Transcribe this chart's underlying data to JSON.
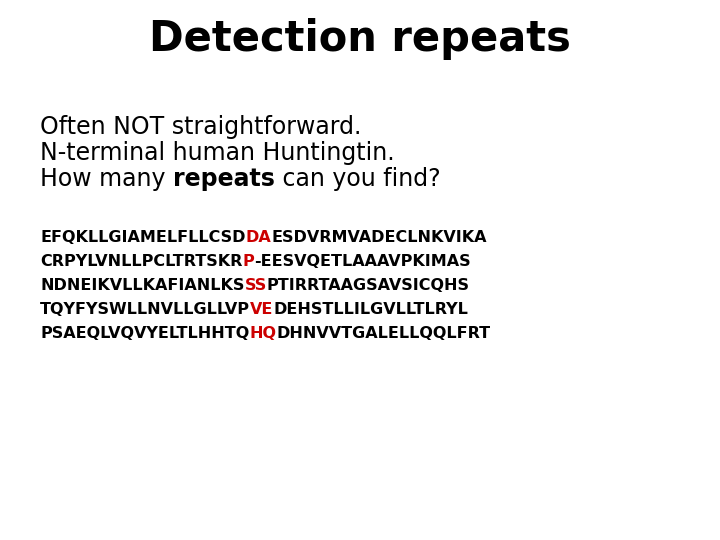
{
  "title": "Detection repeats",
  "background_color": "#ffffff",
  "title_fontsize": 30,
  "title_fontweight": "bold",
  "subtitle_fontsize": 17,
  "subtitle_fontfamily": "DejaVu Sans",
  "subtitle_lines": [
    [
      {
        "text": "Often NOT straightforward.",
        "weight": "normal",
        "color": "#000000"
      }
    ],
    [
      {
        "text": "N-terminal human Huntingtin.",
        "weight": "normal",
        "color": "#000000"
      }
    ],
    [
      {
        "text": "How many ",
        "weight": "normal",
        "color": "#000000"
      },
      {
        "text": "repeats",
        "weight": "bold",
        "color": "#000000"
      },
      {
        "text": " can you find?",
        "weight": "normal",
        "color": "#000000"
      }
    ]
  ],
  "sequence_fontsize": 11.5,
  "sequence_fontfamily": "Courier New",
  "sequence_fontweight": "bold",
  "sequence_lines": [
    [
      {
        "text": "EFQKLLGIAMELFLLCSD",
        "color": "#000000"
      },
      {
        "text": "DA",
        "color": "#cc0000"
      },
      {
        "text": "ESDVRMVADECLNKVIKA",
        "color": "#000000"
      }
    ],
    [
      {
        "text": "CRPYLVNLLPCLTRTSKR",
        "color": "#000000"
      },
      {
        "text": "P",
        "color": "#cc0000"
      },
      {
        "text": "-EESVQETLAAAVPKIMAS",
        "color": "#000000"
      }
    ],
    [
      {
        "text": "NDNEIKVLLKAFIANLKS",
        "color": "#000000"
      },
      {
        "text": "SS",
        "color": "#cc0000"
      },
      {
        "text": "PTIRRTAAGSAVSICQHS",
        "color": "#000000"
      }
    ],
    [
      {
        "text": "TQYFYSWLLNVLLGLLVP",
        "color": "#000000"
      },
      {
        "text": "VE",
        "color": "#cc0000"
      },
      {
        "text": "DEHSTLLILGVLLTLRYL",
        "color": "#000000"
      }
    ],
    [
      {
        "text": "PSAEQLVQVYELTLHHTQ",
        "color": "#000000"
      },
      {
        "text": "HQ",
        "color": "#cc0000"
      },
      {
        "text": "DHNVVTGALELLQQLFRT",
        "color": "#000000"
      }
    ]
  ]
}
